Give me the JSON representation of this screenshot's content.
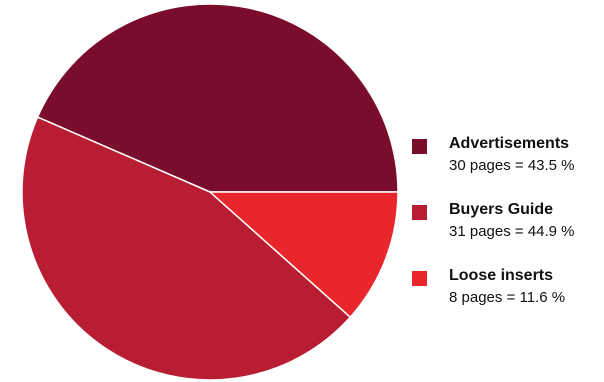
{
  "chart_data": {
    "type": "pie",
    "slices": [
      {
        "label": "Advertisements",
        "pages": 30,
        "percent": 43.5,
        "detail": "30 pages = 43.5 %",
        "color": "#7a0d2b"
      },
      {
        "label": "Buyers Guide",
        "pages": 31,
        "percent": 44.9,
        "detail": "31 pages = 44.9 %",
        "color": "#b91d33"
      },
      {
        "label": "Loose inserts",
        "pages": 8,
        "percent": 11.6,
        "detail": "8 pages = 11.6 %",
        "color": "#e8262b"
      }
    ],
    "legend_position": "right"
  }
}
